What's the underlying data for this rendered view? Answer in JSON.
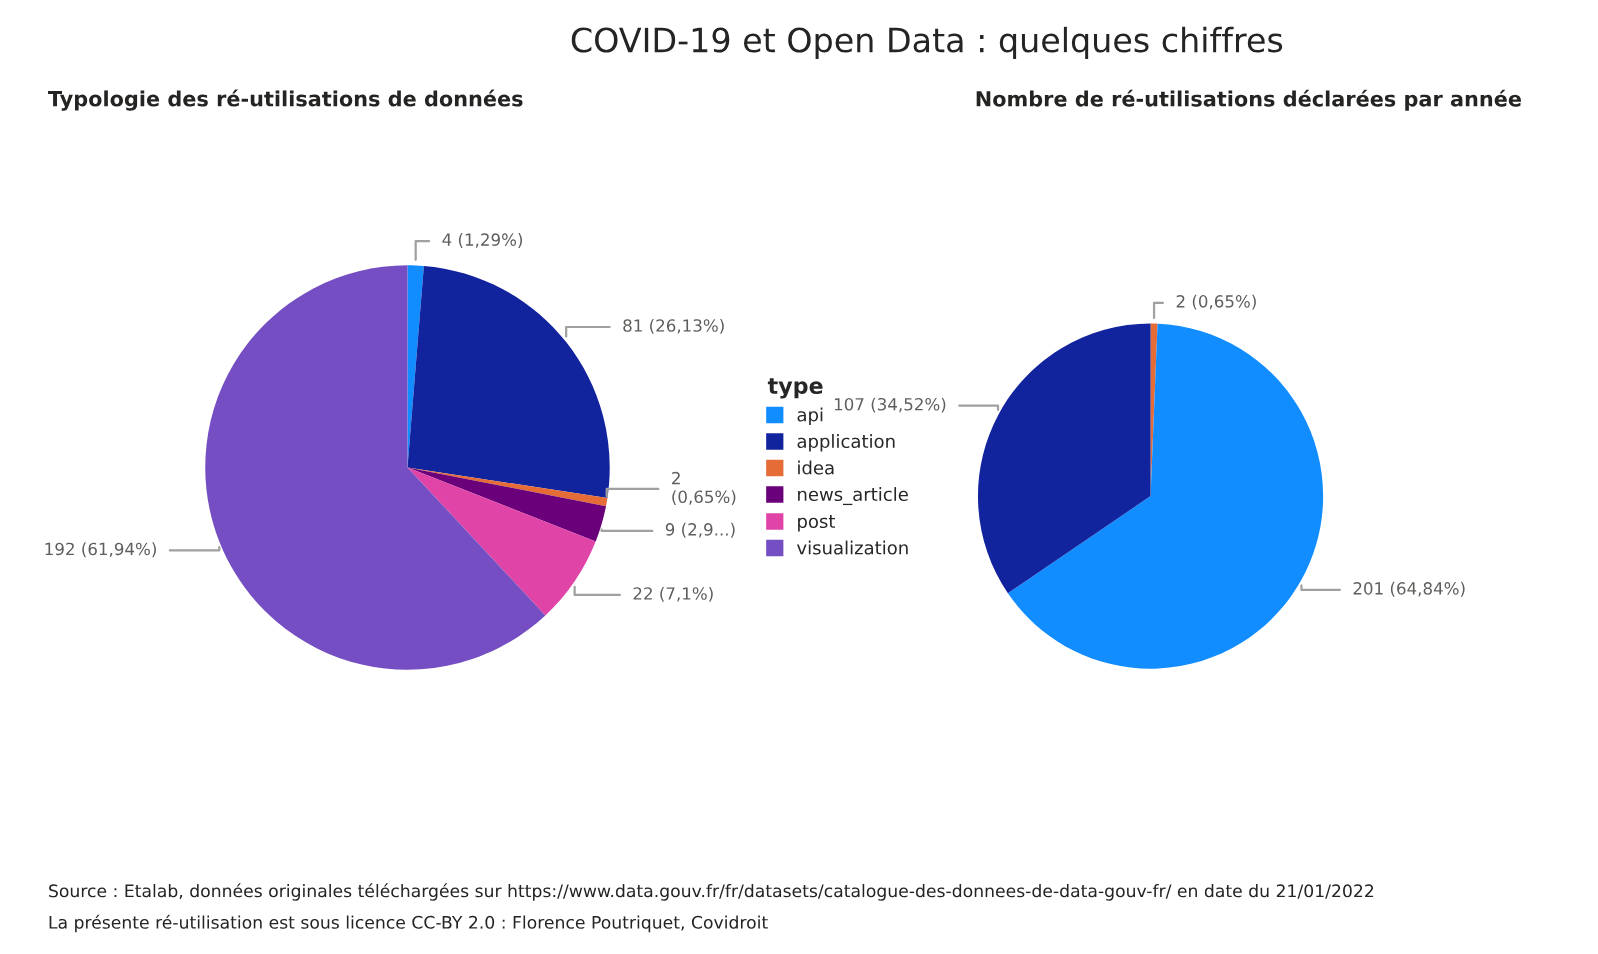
{
  "chart_data": [
    {
      "type": "pie",
      "title": "COVID-19 et Open Data : quelques chiffres",
      "subtitle": "Typologie des ré-utilisations de données",
      "legend_title": "type",
      "legend": "right",
      "categories": [
        "api",
        "application",
        "idea",
        "news_article",
        "post",
        "visualization"
      ],
      "values": [
        4,
        81,
        2,
        9,
        22,
        192
      ],
      "colors": [
        "#118dff",
        "#12239e",
        "#e66c37",
        "#6b007b",
        "#e044a7",
        "#744ec2"
      ],
      "value_labels": [
        "4 (1,29%)",
        "81 (26,13%)",
        "2\n(0,65%)",
        "9 (2,9...)",
        "22 (7,1%)",
        "192 (61,94%)"
      ],
      "annotations": [
        "Source : Etalab, données originales téléchargées sur https://www.data.gouv.fr/fr/datasets/catalogue-des-donnees-de-data-gouv-fr/ en date du 21/01/2022",
        "La présente ré-utilisation est sous licence CC-BY 2.0 : Florence Poutriquet, Covidroit"
      ]
    },
    {
      "type": "pie",
      "title": "Nombre de ré-utilisations déclarées par année",
      "categories": [
        null,
        null,
        null
      ],
      "values": [
        2,
        201,
        107
      ],
      "colors": [
        "#e66c37",
        "#118dff",
        "#12239e"
      ],
      "value_labels": [
        "2 (0,65%)",
        "201 (64,84%)",
        "107 (34,52%)"
      ]
    }
  ]
}
